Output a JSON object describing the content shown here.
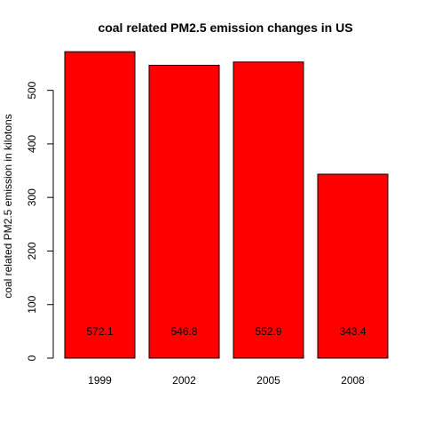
{
  "chart_data": {
    "type": "bar",
    "title": "coal related PM2.5 emission changes in US",
    "xlabel": "",
    "ylabel": "coal related PM2.5 emission in kilotons",
    "categories": [
      "1999",
      "2002",
      "2005",
      "2008"
    ],
    "values": [
      572.1,
      546.8,
      552.9,
      343.4
    ],
    "data_labels": [
      "572.1",
      "546.8",
      "552.9",
      "343.4"
    ],
    "ylim": [
      0,
      600
    ],
    "yticks": [
      0,
      100,
      200,
      300,
      400,
      500
    ],
    "ytick_labels": [
      "0",
      "100",
      "200",
      "300",
      "400",
      "500"
    ],
    "bar_color": "#ff0000",
    "bar_border_color": "#000000",
    "grid": false,
    "legend": "none"
  }
}
